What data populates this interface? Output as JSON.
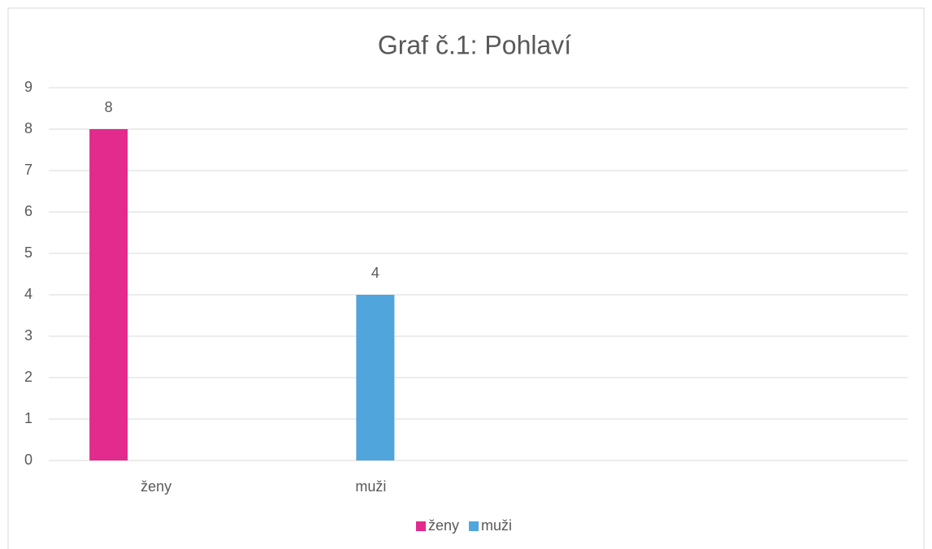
{
  "chart_data": {
    "type": "bar",
    "title": "Graf č.1: Pohlaví",
    "categories": [
      "ženy",
      "muži",
      null,
      null
    ],
    "series": [
      {
        "name": "ženy",
        "color": "#e22b8c",
        "values": [
          8,
          null,
          null,
          null
        ]
      },
      {
        "name": "muži",
        "color": "#4fa5dc",
        "values": [
          null,
          4,
          null,
          null
        ]
      }
    ],
    "ylim": [
      0,
      9
    ],
    "yticks": [
      0,
      1,
      2,
      3,
      4,
      5,
      6,
      7,
      8,
      9
    ],
    "grid": true,
    "legend": "bottom"
  }
}
